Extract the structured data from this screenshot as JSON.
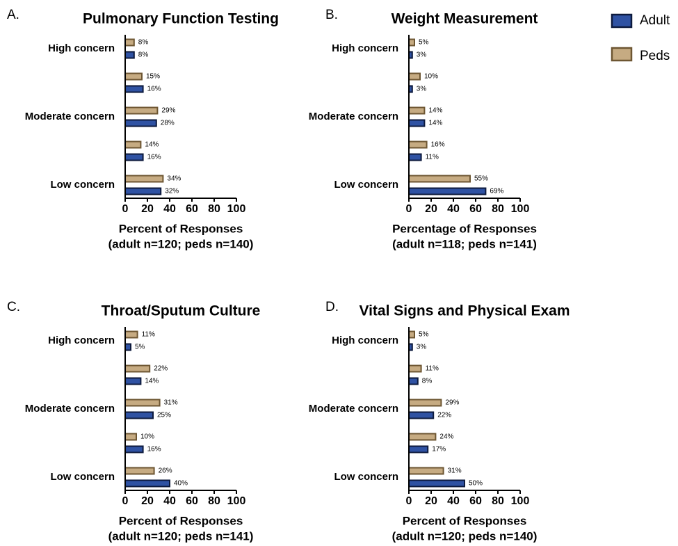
{
  "chart_data": [
    {
      "type": "bar",
      "orientation": "horizontal",
      "panel": "A.",
      "title": "Pulmonary Function Testing",
      "categories": [
        "High concern",
        null,
        "Moderate concern",
        null,
        "Low concern"
      ],
      "series": [
        {
          "name": "Adult",
          "color": "#2f52a3",
          "edge": "#0d1a3d",
          "values": [
            8,
            16,
            28,
            16,
            32
          ],
          "value_labels": [
            "8%",
            "16%",
            "28%",
            "16%",
            "32%"
          ]
        },
        {
          "name": "Peds",
          "color": "#c6ab82",
          "edge": "#6d5632",
          "values": [
            8,
            15,
            29,
            14,
            34
          ],
          "value_labels": [
            "8%",
            "15%",
            "29%",
            "14%",
            "34%"
          ]
        }
      ],
      "xlim": [
        0,
        100
      ],
      "xticks": [
        0,
        20,
        40,
        60,
        80,
        100
      ],
      "xlabel": [
        "Percent of Responses",
        "(adult n=120; peds n=140)"
      ]
    },
    {
      "type": "bar",
      "orientation": "horizontal",
      "panel": "B.",
      "title": "Weight Measurement",
      "categories": [
        "High concern",
        null,
        "Moderate concern",
        null,
        "Low concern"
      ],
      "series": [
        {
          "name": "Adult",
          "color": "#2f52a3",
          "edge": "#0d1a3d",
          "values": [
            3,
            3,
            14,
            11,
            69
          ],
          "value_labels": [
            "3%",
            "3%",
            "14%",
            "11%",
            "69%"
          ]
        },
        {
          "name": "Peds",
          "color": "#c6ab82",
          "edge": "#6d5632",
          "values": [
            5,
            10,
            14,
            16,
            55
          ],
          "value_labels": [
            "5%",
            "10%",
            "14%",
            "16%",
            "55%"
          ]
        }
      ],
      "xlim": [
        0,
        100
      ],
      "xticks": [
        0,
        20,
        40,
        60,
        80,
        100
      ],
      "xlabel": [
        "Percentage of Responses",
        "(adult n=118; peds n=141)"
      ]
    },
    {
      "type": "bar",
      "orientation": "horizontal",
      "panel": "C.",
      "title": "Throat/Sputum Culture",
      "categories": [
        "High concern",
        null,
        "Moderate concern",
        null,
        "Low concern"
      ],
      "series": [
        {
          "name": "Adult",
          "color": "#2f52a3",
          "edge": "#0d1a3d",
          "values": [
            5,
            14,
            25,
            16,
            40
          ],
          "value_labels": [
            "5%",
            "14%",
            "25%",
            "16%",
            "40%"
          ]
        },
        {
          "name": "Peds",
          "color": "#c6ab82",
          "edge": "#6d5632",
          "values": [
            11,
            22,
            31,
            10,
            26
          ],
          "value_labels": [
            "11%",
            "22%",
            "31%",
            "10%",
            "26%"
          ]
        }
      ],
      "xlim": [
        0,
        100
      ],
      "xticks": [
        0,
        20,
        40,
        60,
        80,
        100
      ],
      "xlabel": [
        "Percent of Responses",
        "(adult n=120; peds n=141)"
      ]
    },
    {
      "type": "bar",
      "orientation": "horizontal",
      "panel": "D.",
      "title": "Vital Signs and Physical Exam",
      "categories": [
        "High concern",
        null,
        "Moderate concern",
        null,
        "Low concern"
      ],
      "series": [
        {
          "name": "Adult",
          "color": "#2f52a3",
          "edge": "#0d1a3d",
          "values": [
            3,
            8,
            22,
            17,
            50
          ],
          "value_labels": [
            "3%",
            "8%",
            "22%",
            "17%",
            "50%"
          ]
        },
        {
          "name": "Peds",
          "color": "#c6ab82",
          "edge": "#6d5632",
          "values": [
            5,
            11,
            29,
            24,
            31
          ],
          "value_labels": [
            "5%",
            "11%",
            "29%",
            "24%",
            "31%"
          ]
        }
      ],
      "xlim": [
        0,
        100
      ],
      "xticks": [
        0,
        20,
        40,
        60,
        80,
        100
      ],
      "xlabel": [
        "Percent of Responses",
        "(adult n=120; peds n=140)"
      ]
    }
  ]
}
